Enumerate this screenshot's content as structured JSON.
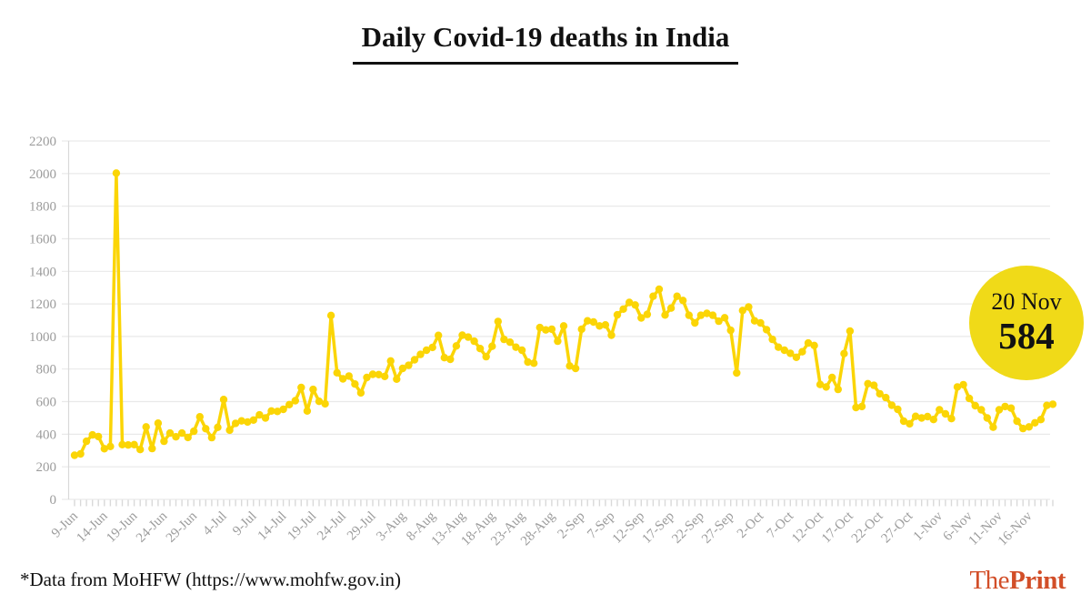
{
  "title": "Daily Covid-19 deaths in India",
  "annotation": {
    "date": "20 Nov",
    "value": "584",
    "bg_color": "#f0da18",
    "text_color": "#121212"
  },
  "footer": {
    "source_note": "*Data from MoHFW (https://www.mohfw.gov.in)",
    "brand_part1": "The",
    "brand_part2": "Print",
    "brand_color": "#d24e28"
  },
  "chart_data": {
    "type": "line",
    "title": "Daily Covid-19 deaths in India",
    "xlabel": "",
    "ylabel": "",
    "ylim": [
      0,
      2200
    ],
    "grid": true,
    "legend": "none",
    "line_color": "#fbd505",
    "grid_color": "#e9e9e9",
    "axis_color": "#d9d9d9",
    "tick_text_color": "#9c9c9c",
    "y_ticks": [
      0,
      200,
      400,
      600,
      800,
      1000,
      1200,
      1400,
      1600,
      1800,
      2000,
      2200
    ],
    "x_tick_labels": [
      "9-Jun",
      "14-Jun",
      "19-Jun",
      "24-Jun",
      "29-Jun",
      "4-Jul",
      "9-Jul",
      "14-Jul",
      "19-Jul",
      "24-Jul",
      "29-Jul",
      "3-Aug",
      "8-Aug",
      "13-Aug",
      "18-Aug",
      "23-Aug",
      "28-Aug",
      "2-Sep",
      "7-Sep",
      "12-Sep",
      "17-Sep",
      "22-Sep",
      "27-Sep",
      "2-Oct",
      "7-Oct",
      "12-Oct",
      "17-Oct",
      "22-Oct",
      "27-Oct",
      "1-Nov",
      "6-Nov",
      "11-Nov",
      "16-Nov"
    ],
    "x_tick_interval_days": 5,
    "date_range": {
      "start": "9-Jun",
      "end": "20-Nov"
    },
    "values": [
      271,
      279,
      357,
      396,
      386,
      311,
      325,
      2003,
      336,
      334,
      336,
      306,
      445,
      312,
      468,
      357,
      407,
      384,
      407,
      380,
      418,
      507,
      434,
      379,
      442,
      613,
      425,
      467,
      482,
      475,
      487,
      519,
      500,
      543,
      540,
      553,
      582,
      606,
      687,
      543,
      675,
      602,
      587,
      1129,
      777,
      740,
      757,
      708,
      654,
      748,
      768,
      766,
      755,
      850,
      738,
      804,
      823,
      857,
      890,
      916,
      933,
      1007,
      870,
      860,
      942,
      1008,
      996,
      971,
      926,
      876,
      940,
      1092,
      982,
      965,
      934,
      916,
      843,
      836,
      1055,
      1040,
      1045,
      971,
      1065,
      819,
      804,
      1045,
      1096,
      1089,
      1065,
      1071,
      1008,
      1133,
      1168,
      1209,
      1193,
      1114,
      1136,
      1247,
      1290,
      1132,
      1174,
      1247,
      1221,
      1130,
      1083,
      1130,
      1142,
      1130,
      1094,
      1115,
      1038,
      776,
      1160,
      1181,
      1096,
      1083,
      1042,
      982,
      934,
      916,
      897,
      872,
      906,
      960,
      945,
      705,
      690,
      748,
      675,
      895,
      1033,
      564,
      570,
      710,
      700,
      648,
      625,
      578,
      553,
      480,
      464,
      510,
      500,
      508,
      490,
      550,
      525,
      496,
      690,
      704,
      620,
      575,
      550,
      500,
      443,
      550,
      570,
      560,
      480,
      435,
      445,
      470,
      490,
      577,
      584
    ],
    "annotation": {
      "label": "20 Nov",
      "value": 584
    }
  }
}
